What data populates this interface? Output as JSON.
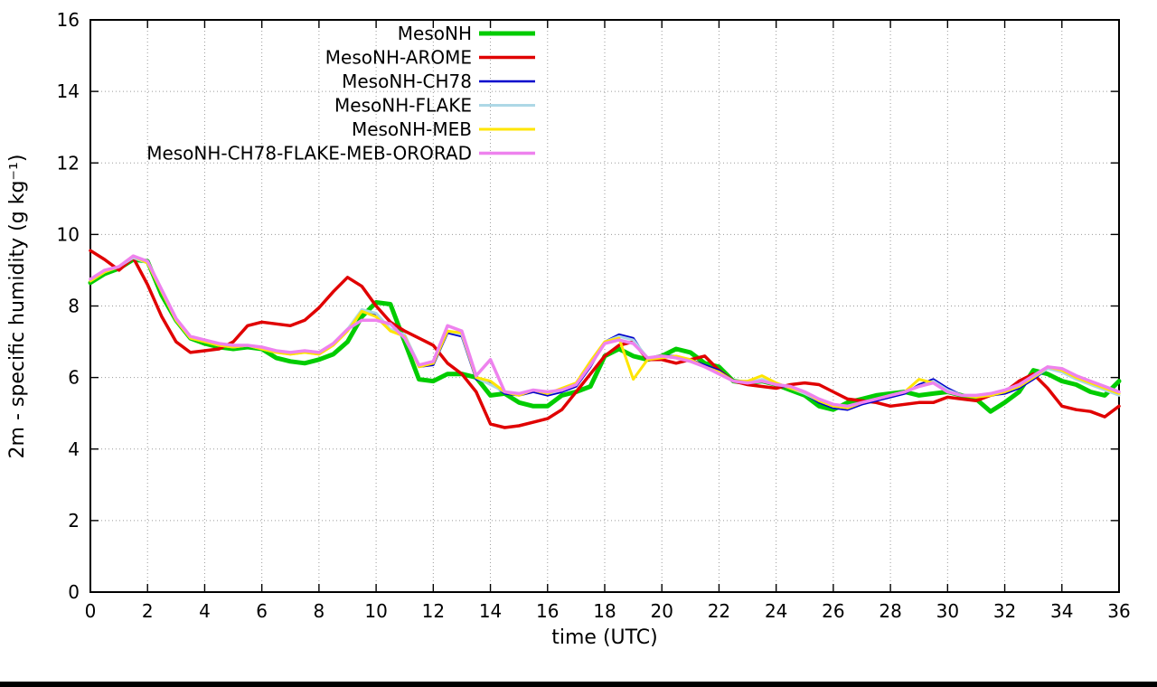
{
  "chart_data": {
    "type": "line",
    "title": "",
    "xlabel": "time (UTC)",
    "ylabel": "2m - specific humidity (g kg⁻¹)",
    "xlim": [
      0,
      36
    ],
    "ylim": [
      0,
      16
    ],
    "xticks": [
      0,
      2,
      4,
      6,
      8,
      10,
      12,
      14,
      16,
      18,
      20,
      22,
      24,
      26,
      28,
      30,
      32,
      34,
      36
    ],
    "yticks": [
      0,
      2,
      4,
      6,
      8,
      10,
      12,
      14,
      16
    ],
    "grid": true,
    "legend_position": "top-center",
    "x_start": 0,
    "x_step": 0.5,
    "series": [
      {
        "name": "MesoNH",
        "color": "#00cc00",
        "width": 5,
        "values": [
          8.65,
          8.9,
          9.05,
          9.3,
          9.25,
          8.3,
          7.6,
          7.1,
          6.95,
          6.85,
          6.8,
          6.85,
          6.8,
          6.55,
          6.45,
          6.4,
          6.5,
          6.65,
          7.0,
          7.7,
          8.1,
          8.05,
          7.0,
          5.95,
          5.9,
          6.1,
          6.1,
          6.0,
          5.5,
          5.55,
          5.3,
          5.2,
          5.2,
          5.5,
          5.6,
          5.75,
          6.6,
          6.8,
          6.6,
          6.5,
          6.6,
          6.8,
          6.7,
          6.4,
          6.3,
          5.9,
          5.85,
          5.9,
          5.8,
          5.65,
          5.5,
          5.2,
          5.1,
          5.3,
          5.4,
          5.5,
          5.55,
          5.6,
          5.5,
          5.55,
          5.6,
          5.5,
          5.4,
          5.05,
          5.3,
          5.6,
          6.2,
          6.1,
          5.9,
          5.8,
          5.6,
          5.5,
          5.9
        ]
      },
      {
        "name": "MesoNH-AROME",
        "color": "#e00000",
        "width": 3.5,
        "values": [
          9.55,
          9.3,
          9.0,
          9.35,
          8.6,
          7.7,
          7.0,
          6.7,
          6.75,
          6.8,
          7.0,
          7.45,
          7.55,
          7.5,
          7.45,
          7.6,
          7.95,
          8.4,
          8.8,
          8.55,
          8.0,
          7.55,
          7.3,
          7.1,
          6.9,
          6.4,
          6.1,
          5.6,
          4.7,
          4.6,
          4.65,
          4.75,
          4.85,
          5.1,
          5.6,
          6.1,
          6.6,
          6.9,
          7.0,
          6.5,
          6.5,
          6.4,
          6.5,
          6.6,
          6.2,
          5.9,
          5.8,
          5.75,
          5.7,
          5.8,
          5.85,
          5.8,
          5.6,
          5.4,
          5.35,
          5.3,
          5.2,
          5.25,
          5.3,
          5.3,
          5.45,
          5.4,
          5.35,
          5.5,
          5.6,
          5.9,
          6.1,
          5.7,
          5.2,
          5.1,
          5.05,
          4.9,
          5.2
        ]
      },
      {
        "name": "MesoNH-CH78",
        "color": "#0000cc",
        "width": 2.5,
        "values": [
          8.7,
          8.95,
          9.1,
          9.35,
          9.2,
          8.4,
          7.6,
          7.1,
          7.0,
          6.9,
          6.85,
          6.9,
          6.8,
          6.7,
          6.65,
          6.7,
          6.65,
          6.9,
          7.3,
          7.9,
          7.75,
          7.3,
          7.2,
          6.3,
          6.35,
          7.25,
          7.15,
          5.95,
          5.85,
          5.55,
          5.5,
          5.6,
          5.5,
          5.6,
          5.75,
          6.3,
          7.0,
          7.2,
          7.1,
          6.5,
          6.6,
          6.6,
          6.5,
          6.35,
          6.2,
          5.9,
          5.85,
          5.9,
          5.8,
          5.7,
          5.55,
          5.3,
          5.15,
          5.1,
          5.25,
          5.35,
          5.45,
          5.55,
          5.8,
          5.95,
          5.7,
          5.5,
          5.45,
          5.5,
          5.55,
          5.7,
          5.95,
          6.25,
          6.2,
          6.0,
          5.85,
          5.7,
          5.55
        ]
      },
      {
        "name": "MesoNH-FLAKE",
        "color": "#add8e6",
        "width": 3,
        "values": [
          8.7,
          8.95,
          9.1,
          9.35,
          9.2,
          8.4,
          7.6,
          7.1,
          7.0,
          6.9,
          6.85,
          6.9,
          6.8,
          6.7,
          6.7,
          6.75,
          6.7,
          6.95,
          7.35,
          7.9,
          7.8,
          7.35,
          7.2,
          6.35,
          6.4,
          7.3,
          7.2,
          6.0,
          5.8,
          5.6,
          5.55,
          5.65,
          5.55,
          5.65,
          5.8,
          6.35,
          7.0,
          7.15,
          7.05,
          6.55,
          6.6,
          6.55,
          6.45,
          6.3,
          6.15,
          5.9,
          5.85,
          5.95,
          5.85,
          5.7,
          5.55,
          5.35,
          5.2,
          5.15,
          5.3,
          5.4,
          5.5,
          5.6,
          5.75,
          5.9,
          5.65,
          5.5,
          5.5,
          5.55,
          5.6,
          5.75,
          6.0,
          6.25,
          6.15,
          5.95,
          5.8,
          5.65,
          5.5
        ]
      },
      {
        "name": "MesoNH-MEB",
        "color": "#ffe500",
        "width": 3,
        "values": [
          8.7,
          8.95,
          9.1,
          9.4,
          9.2,
          8.4,
          7.6,
          7.1,
          7.0,
          6.9,
          6.85,
          6.9,
          6.8,
          6.7,
          6.65,
          6.7,
          6.65,
          6.9,
          7.3,
          7.85,
          7.7,
          7.3,
          7.15,
          6.3,
          6.4,
          7.3,
          7.25,
          6.0,
          5.9,
          5.6,
          5.5,
          5.65,
          5.55,
          5.7,
          5.85,
          6.45,
          7.0,
          7.1,
          5.95,
          6.5,
          6.55,
          6.6,
          6.5,
          6.3,
          6.15,
          5.9,
          5.9,
          6.05,
          5.85,
          5.7,
          5.6,
          5.35,
          5.2,
          5.15,
          5.3,
          5.4,
          5.5,
          5.6,
          5.95,
          5.85,
          5.6,
          5.5,
          5.45,
          5.5,
          5.6,
          5.75,
          6.0,
          6.3,
          6.2,
          6.0,
          5.85,
          5.7,
          5.55
        ]
      },
      {
        "name": "MesoNH-CH78-FLAKE-MEB-ORORAD",
        "color": "#ee82ee",
        "width": 3.5,
        "values": [
          8.75,
          9.0,
          9.1,
          9.4,
          9.25,
          8.45,
          7.65,
          7.15,
          7.05,
          6.95,
          6.9,
          6.9,
          6.85,
          6.75,
          6.7,
          6.75,
          6.7,
          6.95,
          7.35,
          7.6,
          7.6,
          7.5,
          7.1,
          6.35,
          6.45,
          7.45,
          7.3,
          6.05,
          6.5,
          5.6,
          5.55,
          5.65,
          5.6,
          5.65,
          5.8,
          6.35,
          6.95,
          7.05,
          6.95,
          6.55,
          6.6,
          6.55,
          6.45,
          6.3,
          6.1,
          5.9,
          5.85,
          5.9,
          5.8,
          5.75,
          5.6,
          5.4,
          5.25,
          5.2,
          5.3,
          5.4,
          5.5,
          5.6,
          5.75,
          5.85,
          5.6,
          5.5,
          5.5,
          5.55,
          5.65,
          5.8,
          6.05,
          6.3,
          6.25,
          6.05,
          5.9,
          5.75,
          5.6
        ]
      }
    ],
    "grid_color": "#9a9a9a",
    "border_color": "#000000"
  }
}
